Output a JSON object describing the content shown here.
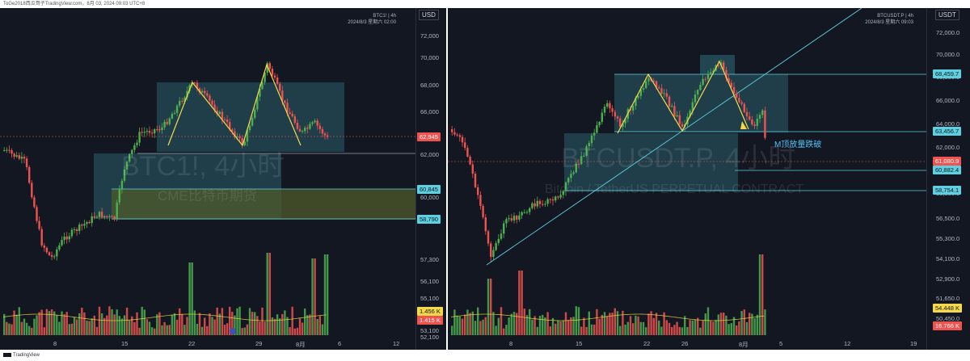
{
  "app": {
    "header": "ToGe2018西瓜哥子TradingView.com，8月 03, 2024 09:03 UTC+8",
    "footer_brand": "TradingView"
  },
  "left_chart": {
    "symbol_line": "BTC1! | 4h",
    "date_line": "2024/8/3 星期六 02:00",
    "currency": "USD",
    "watermark_symbol": "BTC1!, 4小时",
    "watermark_desc": "CME比特币期货",
    "y_ticks": [
      "72,000",
      "70,000",
      "68,000",
      "66,000",
      "64,000",
      "62,000",
      "60,000",
      "58,000",
      "57,300",
      "56,100",
      "55,100",
      "54,100",
      "53,100",
      "52,100"
    ],
    "x_ticks": [
      "8",
      "15",
      "22",
      "29",
      "8月",
      "6",
      "12"
    ],
    "price_labels": {
      "last": "62,945",
      "upper_zone": "60,845",
      "lower_zone": "58,790",
      "vol_ma": "1.456 K",
      "vol": "1.415 K"
    },
    "colors": {
      "up": "#4caf50",
      "down": "#ef5350",
      "zone": "#2a5f6b",
      "gap_zone": "#4f5b2b",
      "pattern": "#f5d94a"
    }
  },
  "right_chart": {
    "symbol_line": "BTCUSDT.P | 4h",
    "date_line": "2024/8/3 星期六 09:03",
    "currency": "USDT",
    "watermark_symbol": "BTCUSDT.P, 4小时",
    "watermark_desc": "Bitcoin / TetherUS PERPETUAL CONTRACT",
    "annotation": "M顶放量跌破",
    "y_ticks": [
      "72,000.0",
      "70,000.0",
      "68,000.0",
      "66,000.0",
      "64,000.0",
      "62,000.0",
      "60,000.0",
      "58,000.0",
      "56,500.0",
      "55,300.0",
      "54,100.0",
      "52,900.0",
      "51,650.0",
      "50,450.0"
    ],
    "x_ticks": [
      "8",
      "15",
      "22",
      "26",
      "8月",
      "5",
      "12",
      "19"
    ],
    "price_labels": {
      "level1": "68,459.7",
      "level2": "63,456.7",
      "last": "61,080.9",
      "level3": "60,882.4",
      "level4": "58,754.1",
      "vol_ma": "54.448 K",
      "vol": "16.766 K"
    },
    "colors": {
      "up": "#4caf50",
      "down": "#ef5350",
      "zone": "#2a5f6b",
      "trendline": "#5fd0e0",
      "pattern": "#f5d94a"
    }
  }
}
